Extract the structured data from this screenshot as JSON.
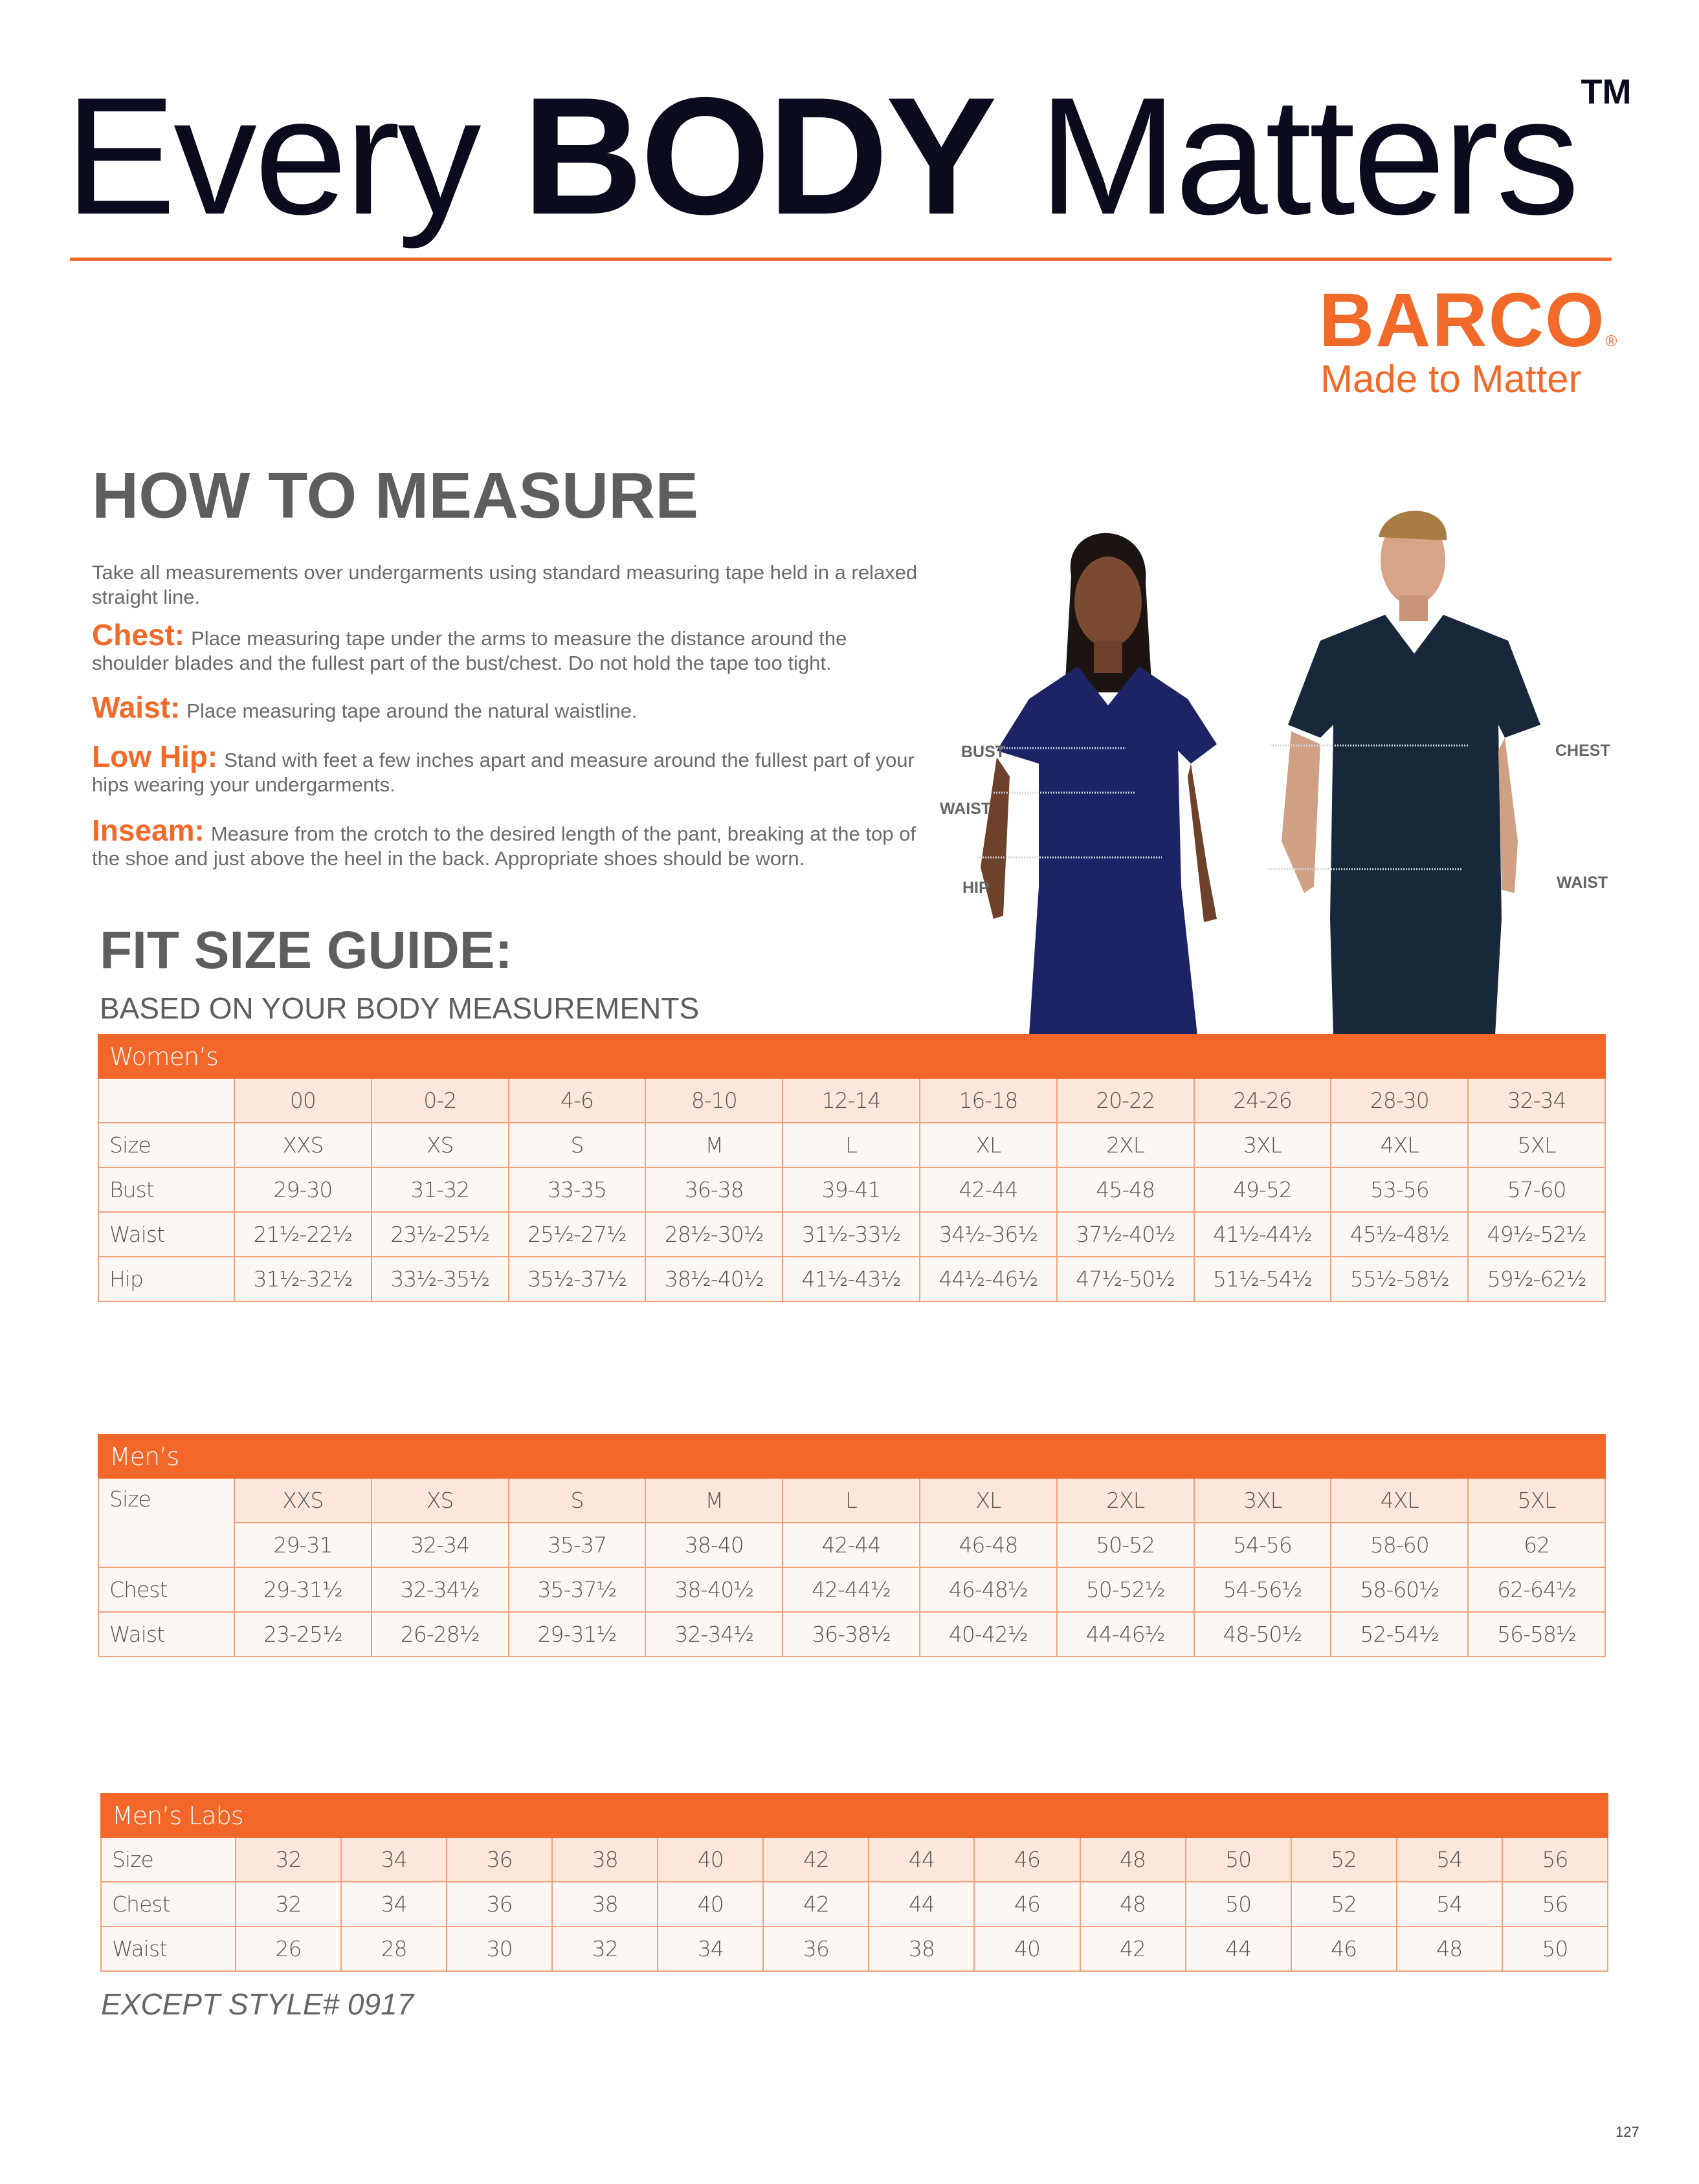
{
  "header": {
    "title_pre": "Every",
    "title_bold": "BODY",
    "title_post": "Matters",
    "trademark": "TM"
  },
  "brand": {
    "logo": "BARCO",
    "registered": "®",
    "tagline": "Made to Matter",
    "color": "#f26a2a"
  },
  "how_to_measure": {
    "heading": "HOW TO MEASURE",
    "intro": "Take all measurements over undergarments using standard measuring tape held in a relaxed straight line.",
    "items": [
      {
        "key": "Chest:",
        "text": "Place measuring tape under the arms to measure the distance around the shoulder blades and the fullest part of the bust/chest. Do not hold the tape too tight."
      },
      {
        "key": "Waist:",
        "text": "Place measuring tape around the natural waistline."
      },
      {
        "key": "Low Hip:",
        "text": "Stand with feet a few inches apart and measure around the fullest part of your hips wearing your undergarments."
      },
      {
        "key": "Inseam:",
        "text": "Measure from the crotch to the desired length of the pant, breaking at the top of the shoe and just above the heel in the back. Appropriate shoes should be worn."
      }
    ]
  },
  "figure_labels": {
    "bust": "BUST",
    "waist_w": "WAIST",
    "hip": "HIP",
    "chest": "CHEST",
    "waist_m": "WAIST"
  },
  "fit_guide": {
    "heading": "FIT SIZE GUIDE:",
    "subheading": "BASED ON YOUR BODY MEASUREMENTS"
  },
  "womens": {
    "title": "Women’s",
    "header": [
      "00",
      "0-2",
      "4-6",
      "8-10",
      "12-14",
      "16-18",
      "20-22",
      "24-26",
      "28-30",
      "32-34"
    ],
    "rows": [
      {
        "label": "Size",
        "values": [
          "XXS",
          "XS",
          "S",
          "M",
          "L",
          "XL",
          "2XL",
          "3XL",
          "4XL",
          "5XL"
        ]
      },
      {
        "label": "Bust",
        "values": [
          "29-30",
          "31-32",
          "33-35",
          "36-38",
          "39-41",
          "42-44",
          "45-48",
          "49-52",
          "53-56",
          "57-60"
        ]
      },
      {
        "label": "Waist",
        "values": [
          "21½-22½",
          "23½-25½",
          "25½-27½",
          "28½-30½",
          "31½-33½",
          "34½-36½",
          "37½-40½",
          "41½-44½",
          "45½-48½",
          "49½-52½"
        ]
      },
      {
        "label": "Hip",
        "values": [
          "31½-32½",
          "33½-35½",
          "35½-37½",
          "38½-40½",
          "41½-43½",
          "44½-46½",
          "47½-50½",
          "51½-54½",
          "55½-58½",
          "59½-62½"
        ]
      }
    ]
  },
  "mens": {
    "title": "Men’s",
    "size_label": "Size",
    "sizes": [
      "XXS",
      "XS",
      "S",
      "M",
      "L",
      "XL",
      "2XL",
      "3XL",
      "4XL",
      "5XL"
    ],
    "numeric": [
      "29-31",
      "32-34",
      "35-37",
      "38-40",
      "42-44",
      "46-48",
      "50-52",
      "54-56",
      "58-60",
      "62"
    ],
    "rows": [
      {
        "label": "Chest",
        "values": [
          "29-31½",
          "32-34½",
          "35-37½",
          "38-40½",
          "42-44½",
          "46-48½",
          "50-52½",
          "54-56½",
          "58-60½",
          "62-64½"
        ]
      },
      {
        "label": "Waist",
        "values": [
          "23-25½",
          "26-28½",
          "29-31½",
          "32-34½",
          "36-38½",
          "40-42½",
          "44-46½",
          "48-50½",
          "52-54½",
          "56-58½"
        ]
      }
    ]
  },
  "mens_labs": {
    "title": "Men’s Labs",
    "rows": [
      {
        "label": "Size",
        "values": [
          "32",
          "34",
          "36",
          "38",
          "40",
          "42",
          "44",
          "46",
          "48",
          "50",
          "52",
          "54",
          "56"
        ]
      },
      {
        "label": "Chest",
        "values": [
          "32",
          "34",
          "36",
          "38",
          "40",
          "42",
          "44",
          "46",
          "48",
          "50",
          "52",
          "54",
          "56"
        ]
      },
      {
        "label": "Waist",
        "values": [
          "26",
          "28",
          "30",
          "32",
          "34",
          "36",
          "38",
          "40",
          "42",
          "44",
          "46",
          "48",
          "50"
        ]
      }
    ],
    "note": "EXCEPT STYLE# 0917"
  },
  "page_number": "127"
}
